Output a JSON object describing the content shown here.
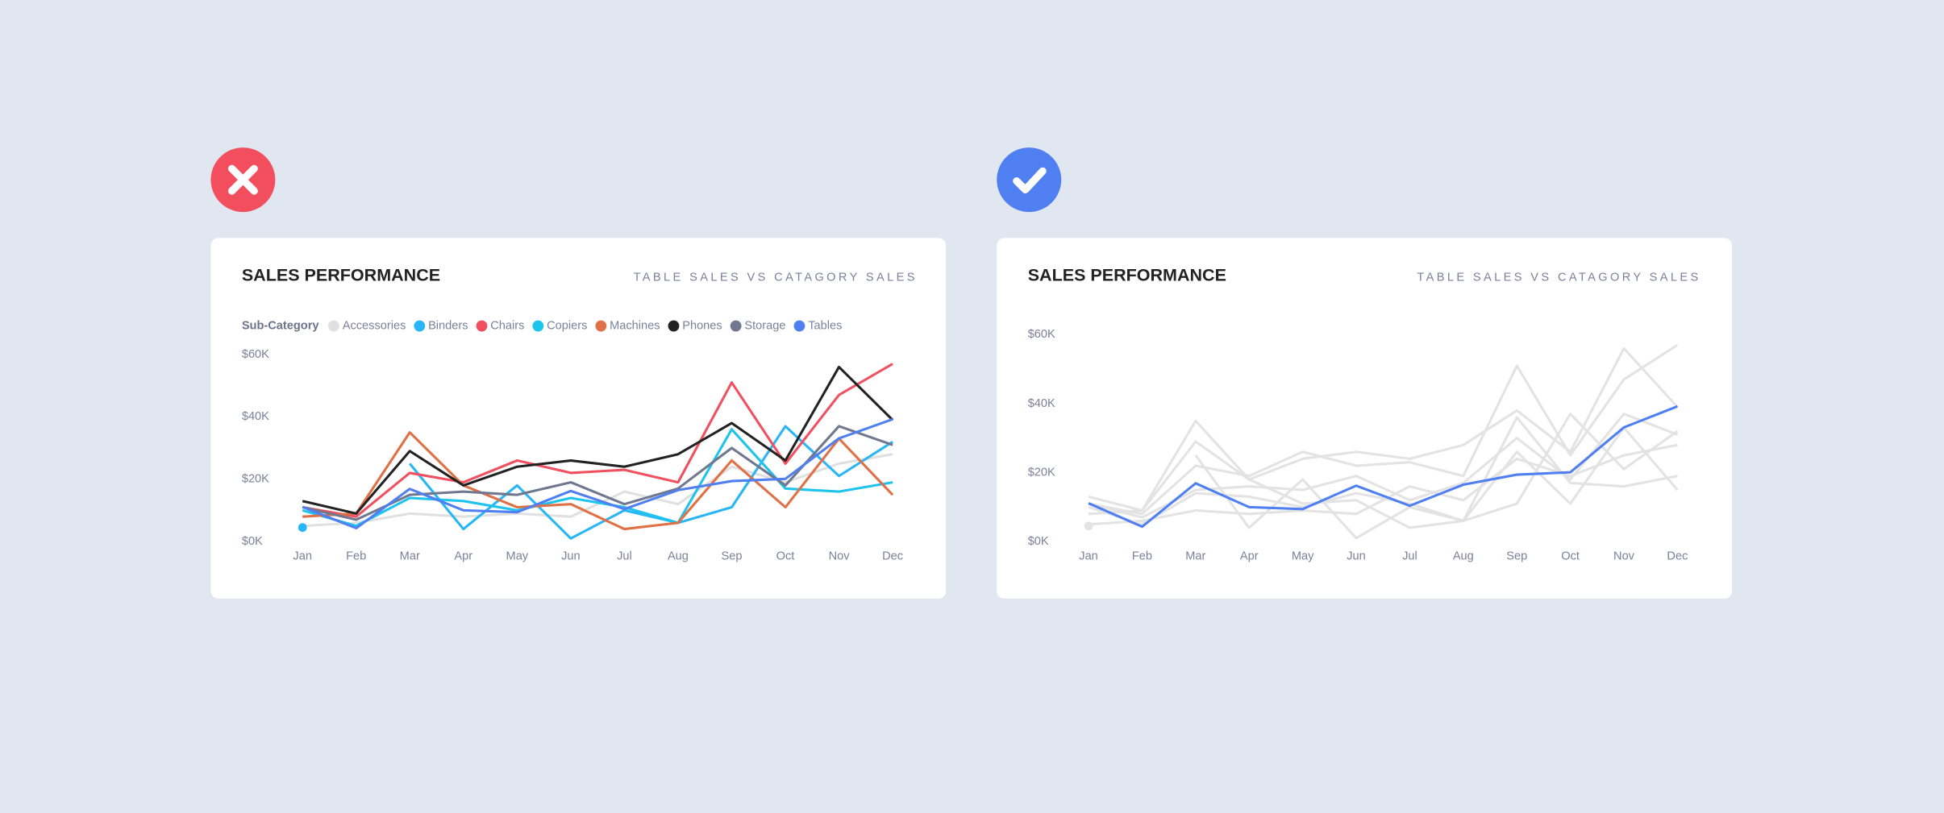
{
  "chart_data": [
    {
      "type": "line",
      "title": "SALES PERFORMANCE",
      "subtitle": "TABLE SALES VS CATAGORY SALES",
      "legend_title": "Sub-Category",
      "legend": "top-left",
      "categories": [
        "Jan",
        "Feb",
        "Mar",
        "Apr",
        "May",
        "Jun",
        "Jul",
        "Aug",
        "Sep",
        "Oct",
        "Nov",
        "Dec"
      ],
      "ylim": [
        0,
        60000
      ],
      "yticks": [
        {
          "value": 0,
          "label": "$0K"
        },
        {
          "value": 20000,
          "label": "$20K"
        },
        {
          "value": 40000,
          "label": "$40K"
        },
        {
          "value": 60000,
          "label": "$60K"
        }
      ],
      "series": [
        {
          "name": "Accessories",
          "color": "#e0e0e0",
          "values": [
            5000,
            6000,
            9000,
            8000,
            9000,
            8000,
            16000,
            12000,
            24000,
            19000,
            25000,
            28000
          ]
        },
        {
          "name": "Binders",
          "color": "#29b6f6",
          "values": [
            4500,
            null,
            25000,
            4000,
            18000,
            1000,
            10000,
            6000,
            11000,
            37000,
            21000,
            32000
          ]
        },
        {
          "name": "Chairs",
          "color": "#f0505f",
          "values": [
            11000,
            8000,
            22000,
            19000,
            26000,
            22000,
            23000,
            19000,
            51000,
            25000,
            47000,
            57000
          ]
        },
        {
          "name": "Copiers",
          "color": "#1ec3ee",
          "values": [
            10000,
            5000,
            14000,
            13000,
            10000,
            14000,
            11000,
            6000,
            36000,
            17000,
            16000,
            19000
          ]
        },
        {
          "name": "Machines",
          "color": "#e07045",
          "values": [
            8000,
            9000,
            35000,
            18000,
            11000,
            12000,
            4000,
            6000,
            26000,
            11000,
            33000,
            15000
          ]
        },
        {
          "name": "Phones",
          "color": "#222222",
          "values": [
            13000,
            9000,
            29000,
            18000,
            24000,
            26000,
            24000,
            28000,
            38000,
            26000,
            56000,
            39000
          ]
        },
        {
          "name": "Storage",
          "color": "#707890",
          "values": [
            11000,
            7000,
            15000,
            16000,
            15000,
            19000,
            12000,
            17000,
            30000,
            18000,
            37000,
            31000
          ]
        },
        {
          "name": "Tables",
          "color": "#4f7ff0",
          "values": [
            11100,
            4300,
            16900,
            10000,
            9400,
            16200,
            10400,
            16500,
            19400,
            20100,
            33100,
            39200
          ]
        }
      ]
    },
    {
      "type": "line",
      "title": "SALES PERFORMANCE",
      "subtitle": "TABLE SALES VS CATAGORY SALES",
      "legend": false,
      "categories": [
        "Jan",
        "Feb",
        "Mar",
        "Apr",
        "May",
        "Jun",
        "Jul",
        "Aug",
        "Sep",
        "Oct",
        "Nov",
        "Dec"
      ],
      "ylim": [
        0,
        60000
      ],
      "yticks": [
        {
          "value": 0,
          "label": "$0K"
        },
        {
          "value": 20000,
          "label": "$20K"
        },
        {
          "value": 40000,
          "label": "$40K"
        },
        {
          "value": 60000,
          "label": "$60K"
        }
      ],
      "series": [
        {
          "color": "#e3e3e3",
          "values": [
            5000,
            6000,
            9000,
            8000,
            9000,
            8000,
            16000,
            12000,
            24000,
            19000,
            25000,
            28000
          ]
        },
        {
          "color": "#e3e3e3",
          "values": [
            4500,
            null,
            25000,
            4000,
            18000,
            1000,
            10000,
            6000,
            11000,
            37000,
            21000,
            32000
          ]
        },
        {
          "color": "#e3e3e3",
          "values": [
            11000,
            8000,
            22000,
            19000,
            26000,
            22000,
            23000,
            19000,
            51000,
            25000,
            47000,
            57000
          ]
        },
        {
          "color": "#e3e3e3",
          "values": [
            10000,
            5000,
            14000,
            13000,
            10000,
            14000,
            11000,
            6000,
            36000,
            17000,
            16000,
            19000
          ]
        },
        {
          "color": "#e3e3e3",
          "values": [
            8000,
            9000,
            35000,
            18000,
            11000,
            12000,
            4000,
            6000,
            26000,
            11000,
            33000,
            15000
          ]
        },
        {
          "color": "#e3e3e3",
          "values": [
            13000,
            9000,
            29000,
            18000,
            24000,
            26000,
            24000,
            28000,
            38000,
            26000,
            56000,
            39000
          ]
        },
        {
          "color": "#e3e3e3",
          "values": [
            11000,
            7000,
            15000,
            16000,
            15000,
            19000,
            12000,
            17000,
            30000,
            18000,
            37000,
            31000
          ]
        },
        {
          "color": "#4f7ff0",
          "values": [
            11100,
            4300,
            16900,
            10000,
            9400,
            16200,
            10400,
            16500,
            19400,
            20100,
            33100,
            39200
          ]
        }
      ]
    }
  ]
}
